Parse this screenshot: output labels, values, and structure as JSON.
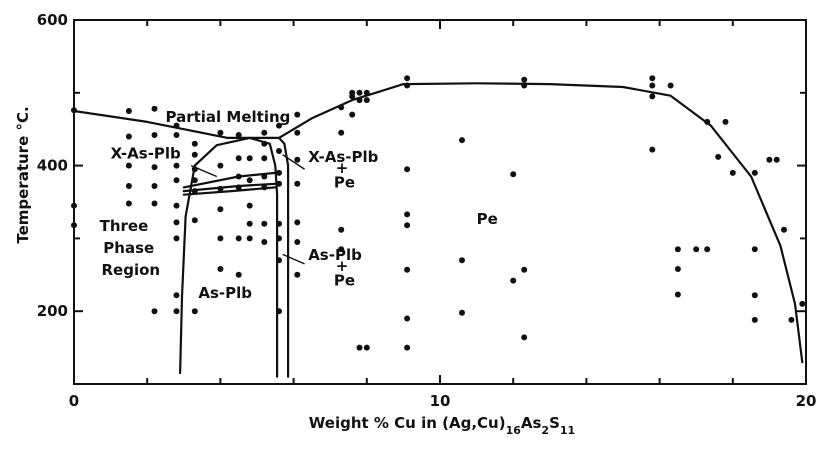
{
  "chart_data": {
    "type": "scatter",
    "xlabel": {
      "main": "Weight % Cu in (Ag,Cu)",
      "sub1": "16",
      "mid1": "As",
      "sub2": "2",
      "mid2": "S",
      "sub3": "11"
    },
    "ylabel": "Temperature °C.",
    "xlim": [
      0,
      20
    ],
    "ylim": [
      100,
      600
    ],
    "x_ticks": [
      0,
      10,
      20
    ],
    "y_ticks": [
      200,
      400,
      600
    ],
    "x_minor_ticks": [
      2,
      4,
      6,
      8,
      12,
      14,
      16,
      18
    ],
    "y_minor_ticks": [
      300,
      500
    ],
    "grid": false,
    "annotations": [
      {
        "text": "Partial Melting",
        "x": 2.5,
        "y": 460
      },
      {
        "text": "X-As-Plb",
        "x": 1.0,
        "y": 410
      },
      {
        "text": "X-As-Plb",
        "x": 6.4,
        "y": 405
      },
      {
        "text": "+",
        "x": 7.15,
        "y": 390
      },
      {
        "text": "Pe",
        "x": 7.1,
        "y": 370
      },
      {
        "text": "Pe",
        "x": 11.0,
        "y": 320
      },
      {
        "text": "Three",
        "x": 0.7,
        "y": 310
      },
      {
        "text": "Phase",
        "x": 0.8,
        "y": 280
      },
      {
        "text": "Region",
        "x": 0.75,
        "y": 250
      },
      {
        "text": "As-Plb",
        "x": 6.4,
        "y": 270
      },
      {
        "text": "+",
        "x": 7.15,
        "y": 255
      },
      {
        "text": "Pe",
        "x": 7.1,
        "y": 235
      },
      {
        "text": "As-Plb",
        "x": 3.4,
        "y": 218
      }
    ],
    "curves": [
      {
        "name": "",
        "points": [
          [
            0,
            475
          ],
          [
            2,
            460
          ],
          [
            4.2,
            438
          ],
          [
            5.6,
            438
          ]
        ]
      },
      {
        "name": "",
        "points": [
          [
            5.6,
            438
          ],
          [
            6.5,
            465
          ],
          [
            7.6,
            490
          ],
          [
            9.0,
            512
          ],
          [
            11.0,
            513
          ],
          [
            13.0,
            512
          ],
          [
            15.0,
            508
          ],
          [
            16.3,
            496
          ],
          [
            17.4,
            455
          ],
          [
            18.5,
            385
          ],
          [
            19.3,
            290
          ],
          [
            19.7,
            210
          ],
          [
            19.9,
            130
          ]
        ]
      },
      {
        "name": "",
        "points": [
          [
            2.9,
            115
          ],
          [
            2.95,
            220
          ],
          [
            3.05,
            330
          ],
          [
            3.3,
            400
          ],
          [
            3.9,
            428
          ],
          [
            4.8,
            438
          ],
          [
            5.35,
            430
          ],
          [
            5.5,
            400
          ],
          [
            5.55,
            360
          ],
          [
            5.55,
            110
          ]
        ]
      },
      {
        "name": "",
        "points": [
          [
            5.85,
            110
          ],
          [
            5.85,
            400
          ],
          [
            5.75,
            430
          ],
          [
            5.6,
            438
          ]
        ]
      },
      {
        "name": "",
        "points": [
          [
            3.0,
            370
          ],
          [
            4.5,
            385
          ],
          [
            5.5,
            390
          ]
        ]
      },
      {
        "name": "",
        "points": [
          [
            3.0,
            365
          ],
          [
            4.5,
            372
          ],
          [
            5.5,
            375
          ]
        ]
      },
      {
        "name": "",
        "points": [
          [
            3.0,
            360
          ],
          [
            4.3,
            365
          ],
          [
            5.5,
            370
          ]
        ]
      }
    ],
    "leaders": [
      [
        [
          3.2,
          400
        ],
        [
          3.9,
          385
        ]
      ],
      [
        [
          6.3,
          395
        ],
        [
          5.7,
          415
        ]
      ],
      [
        [
          6.3,
          265
        ],
        [
          5.7,
          278
        ]
      ]
    ],
    "points": [
      [
        0,
        476
      ],
      [
        0,
        345
      ],
      [
        0,
        318
      ],
      [
        1.5,
        475
      ],
      [
        1.5,
        440
      ],
      [
        1.5,
        400
      ],
      [
        1.5,
        372
      ],
      [
        1.5,
        348
      ],
      [
        2.2,
        478
      ],
      [
        2.2,
        442
      ],
      [
        2.2,
        398
      ],
      [
        2.2,
        372
      ],
      [
        2.2,
        348
      ],
      [
        2.2,
        200
      ],
      [
        2.8,
        455
      ],
      [
        2.8,
        442
      ],
      [
        2.8,
        400
      ],
      [
        2.8,
        380
      ],
      [
        2.8,
        345
      ],
      [
        2.8,
        322
      ],
      [
        2.8,
        300
      ],
      [
        2.8,
        222
      ],
      [
        2.8,
        200
      ],
      [
        3.3,
        430
      ],
      [
        3.3,
        415
      ],
      [
        3.3,
        395
      ],
      [
        3.3,
        380
      ],
      [
        3.3,
        365
      ],
      [
        3.3,
        325
      ],
      [
        3.3,
        200
      ],
      [
        4.0,
        445
      ],
      [
        4.0,
        400
      ],
      [
        4.0,
        368
      ],
      [
        4.0,
        340
      ],
      [
        4.0,
        300
      ],
      [
        4.0,
        258
      ],
      [
        4.5,
        442
      ],
      [
        4.5,
        410
      ],
      [
        4.5,
        385
      ],
      [
        4.5,
        370
      ],
      [
        4.5,
        300
      ],
      [
        4.5,
        250
      ],
      [
        4.8,
        410
      ],
      [
        4.8,
        380
      ],
      [
        4.8,
        345
      ],
      [
        4.8,
        320
      ],
      [
        4.8,
        300
      ],
      [
        5.2,
        445
      ],
      [
        5.2,
        430
      ],
      [
        5.2,
        410
      ],
      [
        5.2,
        385
      ],
      [
        5.2,
        370
      ],
      [
        5.2,
        320
      ],
      [
        5.2,
        295
      ],
      [
        5.6,
        455
      ],
      [
        5.6,
        420
      ],
      [
        5.6,
        390
      ],
      [
        5.6,
        375
      ],
      [
        5.6,
        320
      ],
      [
        5.6,
        300
      ],
      [
        5.6,
        270
      ],
      [
        5.6,
        200
      ],
      [
        6.1,
        470
      ],
      [
        6.1,
        445
      ],
      [
        6.1,
        408
      ],
      [
        6.1,
        375
      ],
      [
        6.1,
        322
      ],
      [
        6.1,
        295
      ],
      [
        6.1,
        250
      ],
      [
        7.3,
        480
      ],
      [
        7.3,
        445
      ],
      [
        7.3,
        312
      ],
      [
        7.3,
        285
      ],
      [
        7.6,
        470
      ],
      [
        7.6,
        495
      ],
      [
        7.6,
        500
      ],
      [
        7.8,
        500
      ],
      [
        7.8,
        490
      ],
      [
        7.8,
        150
      ],
      [
        8.0,
        500
      ],
      [
        8.0,
        490
      ],
      [
        8.0,
        150
      ],
      [
        9.1,
        520
      ],
      [
        9.1,
        510
      ],
      [
        9.1,
        395
      ],
      [
        9.1,
        333
      ],
      [
        9.1,
        318
      ],
      [
        9.1,
        257
      ],
      [
        9.1,
        190
      ],
      [
        9.1,
        150
      ],
      [
        10.6,
        435
      ],
      [
        10.6,
        270
      ],
      [
        10.6,
        198
      ],
      [
        12.0,
        388
      ],
      [
        12.0,
        242
      ],
      [
        12.3,
        518
      ],
      [
        12.3,
        510
      ],
      [
        12.3,
        257
      ],
      [
        12.3,
        164
      ],
      [
        15.8,
        520
      ],
      [
        15.8,
        510
      ],
      [
        15.8,
        495
      ],
      [
        15.8,
        422
      ],
      [
        16.3,
        510
      ],
      [
        16.5,
        285
      ],
      [
        16.5,
        258
      ],
      [
        16.5,
        223
      ],
      [
        17.0,
        285
      ],
      [
        17.3,
        460
      ],
      [
        17.3,
        285
      ],
      [
        17.6,
        412
      ],
      [
        17.8,
        460
      ],
      [
        18.0,
        390
      ],
      [
        18.6,
        390
      ],
      [
        18.6,
        285
      ],
      [
        18.6,
        222
      ],
      [
        18.6,
        188
      ],
      [
        19.0,
        408
      ],
      [
        19.2,
        408
      ],
      [
        19.4,
        312
      ],
      [
        19.6,
        188
      ],
      [
        19.9,
        210
      ]
    ]
  }
}
